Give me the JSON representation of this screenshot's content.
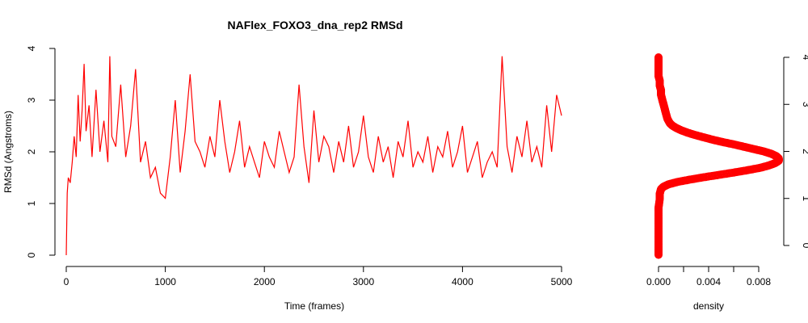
{
  "chart_data": [
    {
      "type": "line",
      "title": "NAFlex_FOXO3_dna_rep2 RMSd",
      "xlabel": "Time (frames)",
      "ylabel": "RMSd (Angstroms)",
      "xlim": [
        0,
        5000
      ],
      "ylim": [
        0,
        4
      ],
      "x_ticks": [
        0,
        1000,
        2000,
        3000,
        4000,
        5000
      ],
      "y_ticks": [
        0,
        1,
        2,
        3,
        4
      ],
      "x_tick_labels": [
        "0",
        "1000",
        "2000",
        "3000",
        "4000",
        "5000"
      ],
      "y_tick_labels": [
        "0",
        "1",
        "2",
        "3",
        "4"
      ],
      "grid": false,
      "line_color": "#ff0000",
      "series": [
        {
          "x": [
            0,
            10,
            20,
            40,
            60,
            80,
            100,
            120,
            140,
            160,
            180,
            200,
            230,
            260,
            300,
            340,
            380,
            420,
            440,
            460,
            500,
            550,
            600,
            650,
            700,
            750,
            800,
            850,
            900,
            950,
            1000,
            1050,
            1100,
            1150,
            1200,
            1250,
            1300,
            1350,
            1400,
            1450,
            1500,
            1550,
            1600,
            1650,
            1700,
            1750,
            1800,
            1850,
            1900,
            1950,
            2000,
            2050,
            2100,
            2150,
            2200,
            2250,
            2300,
            2350,
            2400,
            2450,
            2500,
            2550,
            2600,
            2650,
            2700,
            2750,
            2800,
            2850,
            2900,
            2950,
            3000,
            3050,
            3100,
            3150,
            3200,
            3250,
            3300,
            3350,
            3400,
            3450,
            3500,
            3550,
            3600,
            3650,
            3700,
            3750,
            3800,
            3850,
            3900,
            3950,
            4000,
            4050,
            4100,
            4150,
            4200,
            4250,
            4300,
            4350,
            4400,
            4450,
            4500,
            4550,
            4600,
            4650,
            4700,
            4750,
            4800,
            4850,
            4900,
            4950,
            5000
          ],
          "values": [
            0.0,
            1.2,
            1.5,
            1.4,
            1.8,
            2.3,
            1.9,
            3.1,
            2.2,
            2.8,
            3.7,
            2.4,
            2.9,
            1.9,
            3.2,
            2.0,
            2.6,
            1.8,
            3.85,
            2.3,
            2.1,
            3.3,
            1.9,
            2.5,
            3.6,
            1.8,
            2.2,
            1.5,
            1.7,
            1.2,
            1.1,
            1.9,
            3.0,
            1.6,
            2.4,
            3.5,
            2.2,
            2.0,
            1.7,
            2.3,
            1.9,
            3.0,
            2.2,
            1.6,
            2.0,
            2.6,
            1.7,
            2.1,
            1.8,
            1.5,
            2.2,
            1.9,
            1.7,
            2.4,
            2.0,
            1.6,
            1.9,
            3.3,
            2.1,
            1.4,
            2.8,
            1.8,
            2.3,
            2.1,
            1.6,
            2.2,
            1.8,
            2.5,
            1.7,
            2.0,
            2.7,
            1.9,
            1.6,
            2.3,
            1.8,
            2.1,
            1.5,
            2.2,
            1.9,
            2.6,
            1.7,
            2.0,
            1.8,
            2.3,
            1.6,
            2.1,
            1.9,
            2.4,
            1.7,
            2.0,
            2.5,
            1.6,
            1.9,
            2.2,
            1.5,
            1.8,
            2.0,
            1.7,
            3.85,
            2.1,
            1.6,
            2.3,
            1.9,
            2.6,
            1.8,
            2.1,
            1.7,
            2.9,
            2.0,
            3.1,
            2.7
          ]
        }
      ]
    },
    {
      "type": "scatter",
      "title": "",
      "xlabel": "density",
      "ylabel": "",
      "xlim": [
        0,
        0.009
      ],
      "ylim": [
        0,
        4
      ],
      "x_ticks": [
        0,
        0.004,
        0.008
      ],
      "y_ticks": [
        0,
        1,
        2,
        3,
        4
      ],
      "x_tick_labels": [
        "0.000",
        "0.004",
        "0.008"
      ],
      "y_tick_labels": [
        "0",
        "1",
        "2",
        "3",
        "4"
      ],
      "grid": false,
      "marker_color": "#ff0000",
      "series": [
        {
          "y": [
            -0.2,
            0.0,
            0.2,
            0.4,
            0.6,
            0.8,
            1.0,
            1.1,
            1.2,
            1.25,
            1.3,
            1.35,
            1.4,
            1.45,
            1.5,
            1.55,
            1.6,
            1.65,
            1.7,
            1.75,
            1.8,
            1.85,
            1.9,
            1.95,
            2.0,
            2.05,
            2.1,
            2.15,
            2.2,
            2.25,
            2.3,
            2.35,
            2.4,
            2.45,
            2.5,
            2.55,
            2.6,
            2.7,
            2.8,
            2.9,
            3.0,
            3.1,
            3.2,
            3.3,
            3.4,
            3.5,
            3.6,
            3.7,
            3.8,
            3.9,
            4.0
          ],
          "x": [
            0.0,
            0.0,
            0.0,
            0.0,
            0.0,
            0.0,
            0.0001,
            0.0001,
            0.0002,
            0.0004,
            0.0008,
            0.0015,
            0.0025,
            0.0036,
            0.0048,
            0.006,
            0.0071,
            0.0081,
            0.0088,
            0.0093,
            0.0096,
            0.0096,
            0.0094,
            0.009,
            0.0084,
            0.0076,
            0.0068,
            0.006,
            0.0051,
            0.0043,
            0.0036,
            0.0029,
            0.0023,
            0.0018,
            0.0014,
            0.0011,
            0.0009,
            0.0007,
            0.0006,
            0.0005,
            0.0004,
            0.0003,
            0.0002,
            0.0002,
            0.0001,
            0.0001,
            0.0,
            0.0,
            0.0,
            0.0,
            0.0
          ]
        }
      ]
    }
  ]
}
